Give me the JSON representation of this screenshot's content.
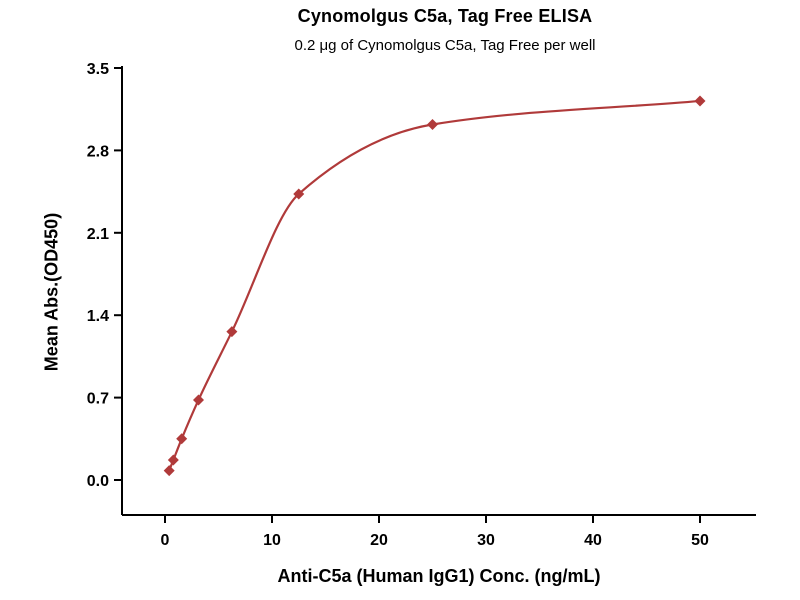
{
  "chart_data": {
    "type": "scatter",
    "title": "Cynomolgus C5a, Tag Free ELISA",
    "subtitle": "0.2 μg of Cynomolgus C5a, Tag Free per well",
    "xlabel": "Anti-C5a (Human IgG1) Conc. (ng/mL)",
    "ylabel": "Mean Abs.(OD450)",
    "series": [
      {
        "name": "Cynomolgus C5a, Tag Free",
        "x": [
          0.39,
          0.78,
          1.56,
          3.13,
          6.25,
          12.5,
          25,
          50
        ],
        "y": [
          0.08,
          0.17,
          0.35,
          0.68,
          1.26,
          2.43,
          3.02,
          3.22
        ]
      }
    ],
    "curve": "smooth-fit-through-points",
    "marker": "diamond",
    "xticks": [
      0,
      10,
      20,
      30,
      40,
      50
    ],
    "ytick_labels": [
      "0.0",
      "0.7",
      "1.4",
      "2.1",
      "2.8",
      "3.5"
    ],
    "xlim": [
      0,
      50
    ],
    "ylim": [
      0,
      3.5
    ],
    "grid": false,
    "legend": "none",
    "accent_color": "#b03a3a",
    "axis_color": "#000000"
  }
}
